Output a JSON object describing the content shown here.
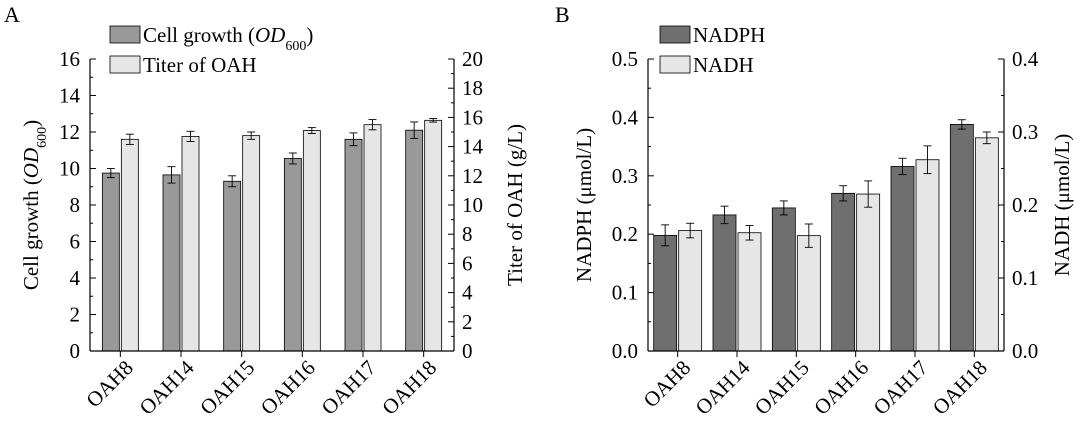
{
  "chart_data": [
    {
      "panel_label": "A",
      "type": "bar",
      "categories": [
        "OAH8",
        "OAH14",
        "OAH15",
        "OAH16",
        "OAH17",
        "OAH18"
      ],
      "series": [
        {
          "name": "Cell growth (OD600)",
          "axis": "left",
          "values": [
            9.75,
            9.65,
            9.3,
            10.55,
            11.6,
            12.1
          ],
          "errors": [
            0.25,
            0.45,
            0.3,
            0.3,
            0.35,
            0.45
          ],
          "color": "#999999"
        },
        {
          "name": "Titer of OAH",
          "axis": "right",
          "values": [
            14.5,
            14.7,
            14.75,
            15.1,
            15.5,
            15.8
          ],
          "errors": [
            0.35,
            0.35,
            0.25,
            0.2,
            0.35,
            0.12
          ],
          "color": "#e6e6e6"
        }
      ],
      "legend": [
        {
          "pre": "Cell growth (",
          "italic": "OD",
          "sub": "600",
          "post": ")"
        },
        {
          "pre": "Titer of OAH",
          "italic": "",
          "sub": "",
          "post": ""
        }
      ],
      "ylabel_left": {
        "pre": "Cell growth (",
        "italic": "OD",
        "sub": "600",
        "post": ")"
      },
      "ylabel_right": "Titer of OAH (g/L)",
      "ylim_left": [
        0,
        16
      ],
      "yticks_left": [
        "0",
        "2",
        "4",
        "6",
        "8",
        "10",
        "12",
        "14",
        "16"
      ],
      "ylim_right": [
        0,
        20
      ],
      "yticks_right": [
        "0",
        "2",
        "4",
        "6",
        "8",
        "10",
        "12",
        "14",
        "16",
        "18",
        "20"
      ]
    },
    {
      "panel_label": "B",
      "type": "bar",
      "categories": [
        "OAH8",
        "OAH14",
        "OAH15",
        "OAH16",
        "OAH17",
        "OAH18"
      ],
      "series": [
        {
          "name": "NADPH",
          "axis": "left",
          "values": [
            0.198,
            0.233,
            0.245,
            0.27,
            0.316,
            0.388
          ],
          "errors": [
            0.018,
            0.015,
            0.012,
            0.013,
            0.014,
            0.008
          ],
          "color": "#6f6f6f"
        },
        {
          "name": "NADH",
          "axis": "right",
          "values": [
            0.165,
            0.162,
            0.158,
            0.215,
            0.262,
            0.292
          ],
          "errors": [
            0.01,
            0.01,
            0.016,
            0.018,
            0.019,
            0.008
          ],
          "color": "#e6e6e6"
        }
      ],
      "legend": [
        {
          "pre": "NADPH",
          "italic": "",
          "sub": "",
          "post": ""
        },
        {
          "pre": "NADH",
          "italic": "",
          "sub": "",
          "post": ""
        }
      ],
      "ylabel_left": {
        "pre": "NADPH (μmol/L)",
        "italic": "",
        "sub": "",
        "post": ""
      },
      "ylabel_right": "NADH (μmol/L)",
      "ylim_left": [
        0,
        0.5
      ],
      "yticks_left": [
        "0.0",
        "0.1",
        "0.2",
        "0.3",
        "0.4",
        "0.5"
      ],
      "ylim_right": [
        0,
        0.4
      ],
      "yticks_right": [
        "0.0",
        "0.1",
        "0.2",
        "0.3",
        "0.4"
      ]
    }
  ]
}
